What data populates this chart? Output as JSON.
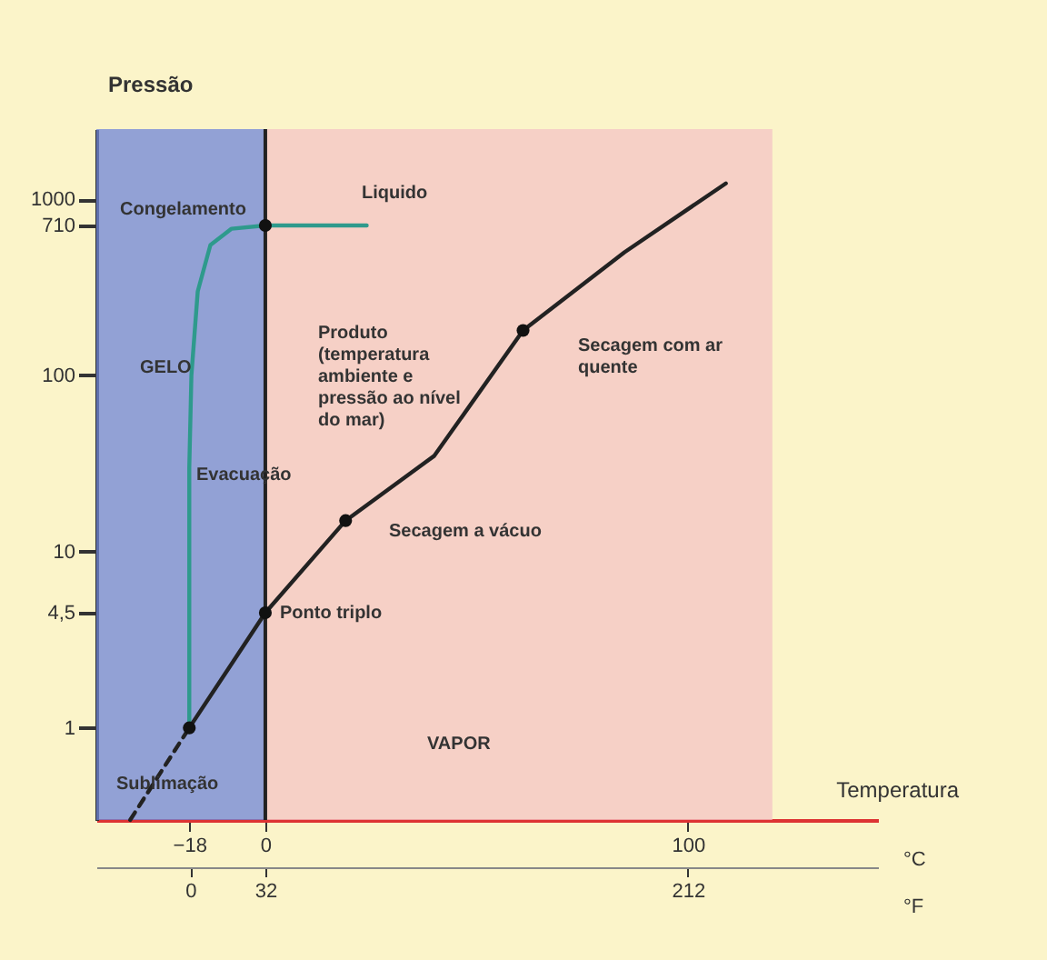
{
  "chart_data": {
    "type": "line",
    "xlabel": "Temperatura",
    "ylabel": "Pressão",
    "xlim": [
      -40,
      145
    ],
    "xticks": [
      -18,
      0,
      100
    ],
    "x2lim": [
      -40,
      293
    ],
    "x2ticks": [
      0,
      32,
      212
    ],
    "ylim": [
      0.3,
      2500
    ],
    "log": "y",
    "yticks": [
      1,
      {
        "value": 4.5,
        "label": "4,5"
      },
      10,
      100,
      710,
      {
        "value": 1000,
        "label": "1000"
      }
    ],
    "grid": false,
    "bands": [
      {
        "axis": "x",
        "from": -40,
        "to": 0,
        "color": "#6f86d8"
      },
      {
        "axis": "x",
        "from": 0,
        "to": 120,
        "color": "#f4c4c4"
      }
    ],
    "ref_lines": [
      {
        "axis": "x",
        "value": 0,
        "color": "#222222"
      }
    ],
    "series": [
      {
        "color": "#2e9a8c",
        "x": [
          24,
          0,
          -8,
          -13,
          -16,
          -17.5,
          -18,
          -18
        ],
        "values": [
          710,
          710,
          680,
          550,
          300,
          100,
          30,
          1
        ]
      },
      {
        "color": "#222222",
        "line_style": "dashed",
        "x": [
          -32,
          -18
        ],
        "values": [
          0.3,
          1
        ]
      },
      {
        "color": "#222222",
        "x": [
          -18,
          0,
          19,
          40,
          61,
          85,
          109
        ],
        "values": [
          1,
          4.5,
          15,
          35,
          180,
          500,
          1230
        ]
      },
      {
        "type": "scatter",
        "color": "#111111",
        "x": [
          -18,
          0,
          0,
          19,
          61
        ],
        "values": [
          1,
          4.5,
          710,
          15,
          180
        ]
      }
    ],
    "annotations": [
      "Liquido",
      "Congelamento",
      "GELO",
      "Evacuação",
      "Sublimação",
      "Produto (temperatura ambiente e pressão ao nível do mar)",
      {
        "text": "Ponto triplo",
        "x": 0,
        "y": 4.5
      },
      "Secagem a vácuo",
      "Secagem com ar quente",
      "VAPOR",
      "°C",
      "°F"
    ]
  }
}
